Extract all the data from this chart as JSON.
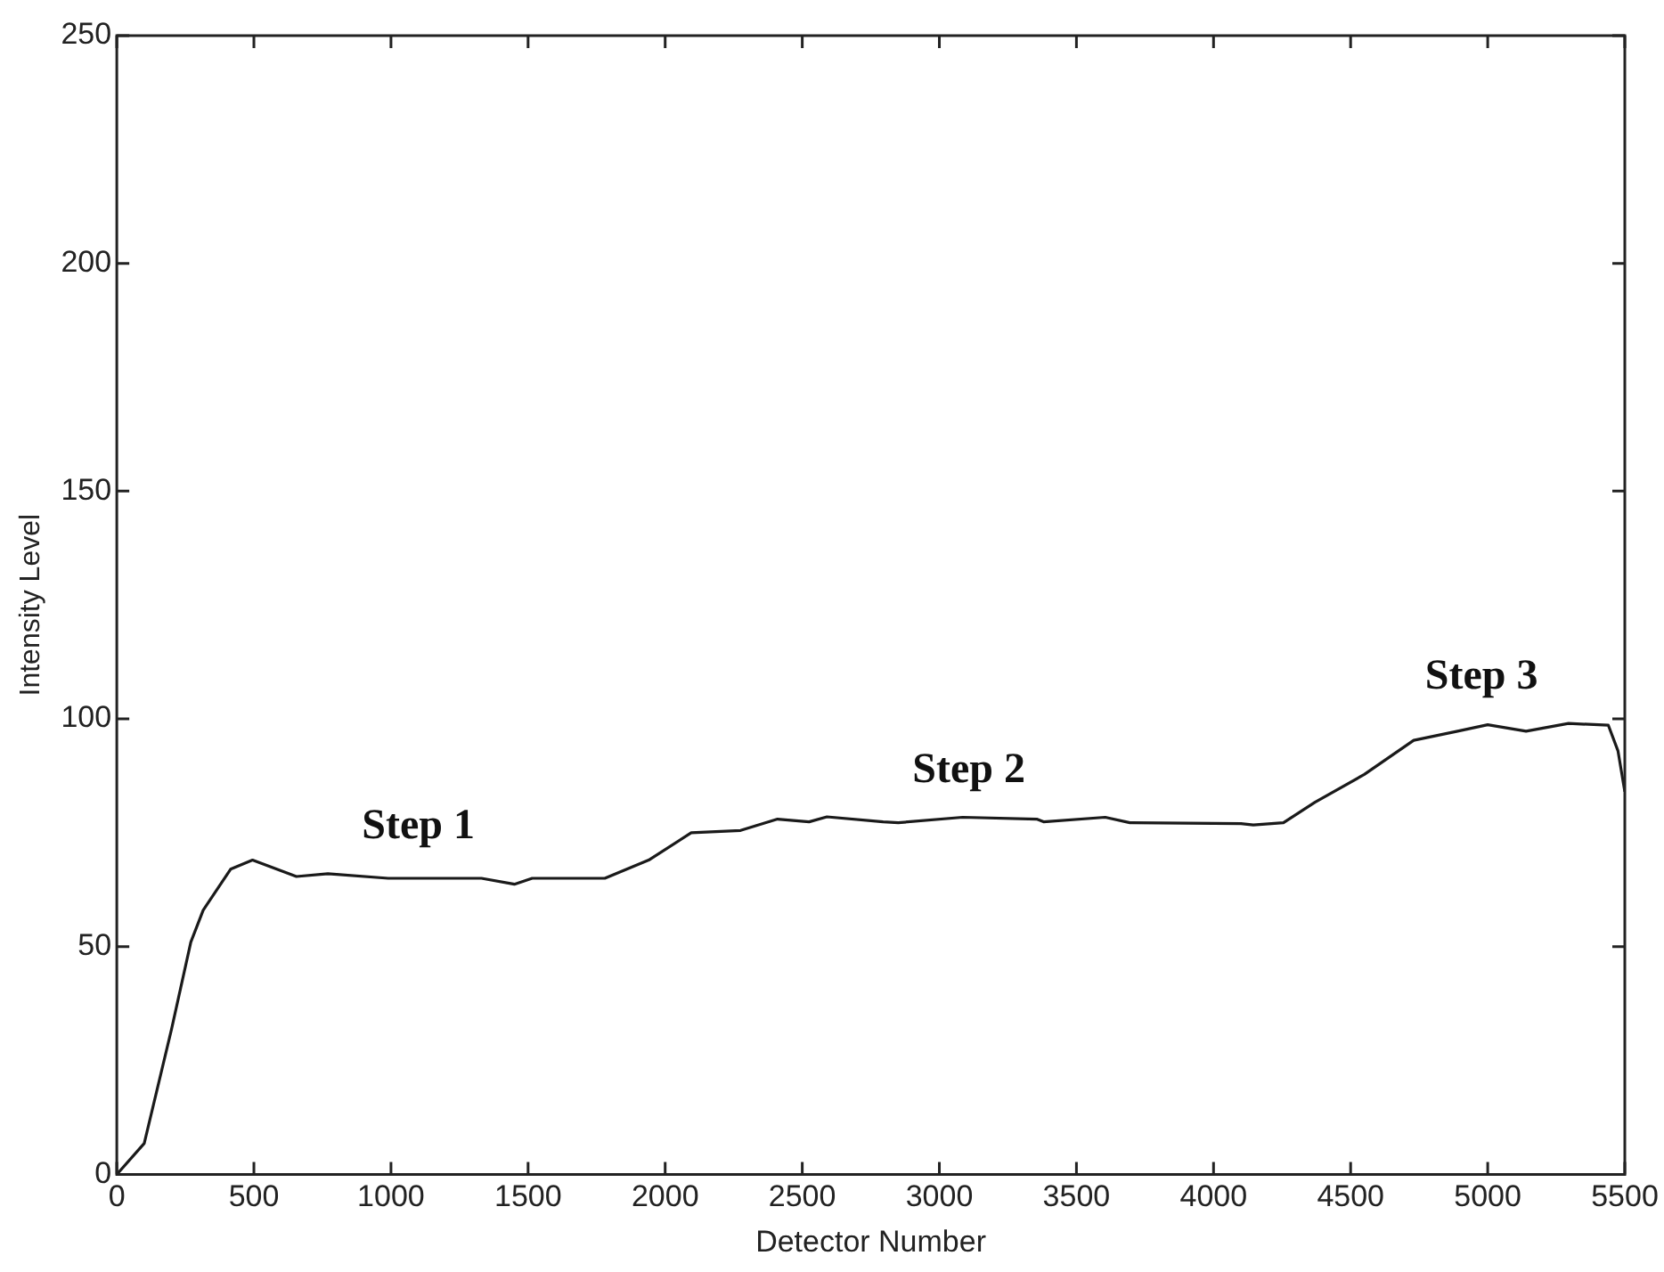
{
  "chart_data": {
    "type": "line",
    "xlabel": "Detector Number",
    "ylabel": "Intensity Level",
    "xlim": [
      0,
      5500
    ],
    "xticks": [
      0,
      500,
      1000,
      1500,
      2000,
      2500,
      3000,
      3500,
      4000,
      4500,
      5000,
      5500
    ],
    "ylim": [
      0,
      250
    ],
    "yticks": [
      0,
      50,
      100,
      150,
      200,
      250
    ],
    "grid": false,
    "legend": false,
    "marker": "none",
    "line_style": "solid",
    "series": [
      {
        "color": "#1a1a1a",
        "x": [
          0,
          100,
          200,
          270,
          315,
          415,
          495,
          655,
          770,
          990,
          1150,
          1330,
          1450,
          1515,
          1780,
          1940,
          2095,
          2275,
          2410,
          2525,
          2590,
          2795,
          2850,
          3085,
          3355,
          3380,
          3605,
          3695,
          4100,
          4145,
          4255,
          4370,
          4550,
          4730,
          4890,
          5000,
          5140,
          5295,
          5440,
          5475,
          5500
        ],
        "values": [
          0,
          6.8,
          32,
          51,
          58,
          67,
          69,
          65.4,
          66,
          65,
          65,
          65,
          63.7,
          65,
          65,
          69,
          75,
          75.5,
          78,
          77.4,
          78.5,
          77.4,
          77.2,
          78.4,
          78,
          77.4,
          78.4,
          77.2,
          77,
          76.7,
          77.2,
          81.7,
          87.8,
          95.3,
          97.3,
          98.7,
          97.3,
          99,
          98.6,
          93,
          84
        ]
      }
    ],
    "annotations": [
      "Step 1",
      "Step 2",
      "Step 3"
    ]
  }
}
